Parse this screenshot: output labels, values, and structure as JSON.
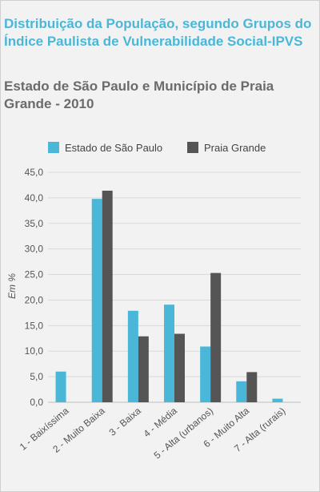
{
  "header": {
    "title": "Distribuição da População, segundo Grupos do Índice Paulista de Vulnerabilidade Social-IPVS",
    "subtitle": "Estado de São Paulo e Município de Praia Grande - 2010"
  },
  "chart_data": {
    "type": "bar",
    "title": "Distribuição da População, segundo Grupos do Índice Paulista de Vulnerabilidade Social-IPVS",
    "subtitle": "Estado de São Paulo e Município de Praia Grande - 2010",
    "ylabel": "Em %",
    "xlabel": "",
    "ylim": [
      0,
      45
    ],
    "yticks": [
      "0,0",
      "5,0",
      "10,0",
      "15,0",
      "20,0",
      "25,0",
      "30,0",
      "35,0",
      "40,0",
      "45,0"
    ],
    "grid": true,
    "legend_position": "top",
    "categories": [
      "1 - Baixíssima",
      "2 - Muito Baixa",
      "3 - Baixa",
      "4 - Média",
      "5 - Alta (urbanos)",
      "6 - Muito Alta",
      "7 - Alta (rurais)"
    ],
    "series": [
      {
        "name": "Estado de São Paulo",
        "color": "#4ab7d8",
        "values": [
          6.0,
          39.8,
          17.9,
          19.1,
          10.9,
          4.1,
          0.7
        ]
      },
      {
        "name": "Praia Grande",
        "color": "#555555",
        "values": [
          0.0,
          41.4,
          12.9,
          13.4,
          25.3,
          5.9,
          0.0
        ]
      }
    ]
  }
}
